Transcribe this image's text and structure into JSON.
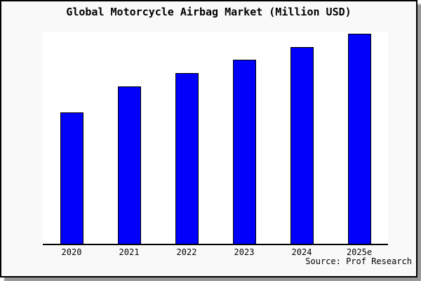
{
  "title": "Global Motorcycle Airbag Market (Million USD)",
  "source_note": "Source: Prof Research",
  "chart_data": {
    "type": "bar",
    "title": "Global Motorcycle Airbag Market (Million USD)",
    "categories": [
      "2020",
      "2021",
      "2022",
      "2023",
      "2024",
      "2025e"
    ],
    "values": [
      62.5,
      75,
      81.25,
      87.5,
      93.75,
      100
    ],
    "value_scale": "percent of tallest bar (no y-axis tick labels are shown in the chart)",
    "xlabel": "",
    "ylabel": "",
    "ylim": [
      0,
      100.7
    ],
    "grid": false,
    "legend": false,
    "y_axis_labels_shown": false,
    "bar_color": "#0000fb",
    "bar_border_color": "#000000",
    "axis_color": "#000000",
    "plot_background": "#ffffff",
    "panel_background": "#f9f9f9"
  },
  "colors": {
    "panel_border": "#000000",
    "drop_shadow": "#969696",
    "text": "#000000"
  }
}
